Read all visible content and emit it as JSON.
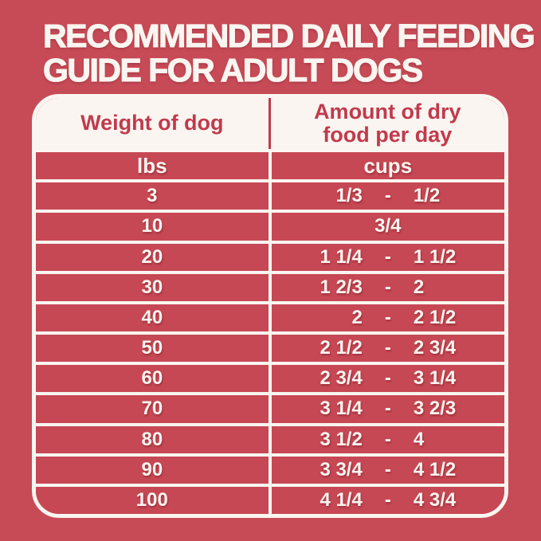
{
  "title": {
    "line1": "RECOMMENDED DAILY FEEDING",
    "line2": "GUIDE FOR ADULT DOGS"
  },
  "table": {
    "header": {
      "weight_col": "Weight of dog",
      "amount_col": "Amount of dry food per day"
    },
    "units": {
      "weight": "lbs",
      "amount": "cups"
    },
    "rows": [
      {
        "weight": "3",
        "lo": "1/3",
        "dash": "-",
        "hi": "1/2"
      },
      {
        "weight": "10",
        "single": "3/4"
      },
      {
        "weight": "20",
        "lo": "1 1/4",
        "dash": "-",
        "hi": "1 1/2"
      },
      {
        "weight": "30",
        "lo": "1 2/3",
        "dash": "-",
        "hi": "2"
      },
      {
        "weight": "40",
        "lo": "2",
        "dash": "-",
        "hi": "2 1/2"
      },
      {
        "weight": "50",
        "lo": "2 1/2",
        "dash": "-",
        "hi": "2 3/4"
      },
      {
        "weight": "60",
        "lo": "2 3/4",
        "dash": "-",
        "hi": "3 1/4"
      },
      {
        "weight": "70",
        "lo": "3 1/4",
        "dash": "-",
        "hi": "3 2/3"
      },
      {
        "weight": "80",
        "lo": "3 1/2",
        "dash": "-",
        "hi": "4"
      },
      {
        "weight": "90",
        "lo": "3 3/4",
        "dash": "-",
        "hi": "4 1/2"
      },
      {
        "weight": "100",
        "lo": "4 1/4",
        "dash": "-",
        "hi": "4 3/4"
      }
    ]
  },
  "colors": {
    "background": "#C74B57",
    "cell": "#C64854",
    "accent_red": "#C13A4D",
    "white": "#FAF5F0"
  },
  "chart_data": {
    "type": "table",
    "title": "RECOMMENDED DAILY FEEDING GUIDE FOR ADULT DOGS",
    "columns": [
      "Weight of dog (lbs)",
      "Amount of dry food per day (cups)"
    ],
    "rows": [
      [
        "3",
        "1/3 - 1/2"
      ],
      [
        "10",
        "3/4"
      ],
      [
        "20",
        "1 1/4 - 1 1/2"
      ],
      [
        "30",
        "1 2/3 - 2"
      ],
      [
        "40",
        "2 - 2 1/2"
      ],
      [
        "50",
        "2 1/2 - 2 3/4"
      ],
      [
        "60",
        "2 3/4 - 3 1/4"
      ],
      [
        "70",
        "3 1/4 - 3 2/3"
      ],
      [
        "80",
        "3 1/2 - 4"
      ],
      [
        "90",
        "3 3/4 - 4 1/2"
      ],
      [
        "100",
        "4 1/4 - 4 3/4"
      ]
    ]
  }
}
